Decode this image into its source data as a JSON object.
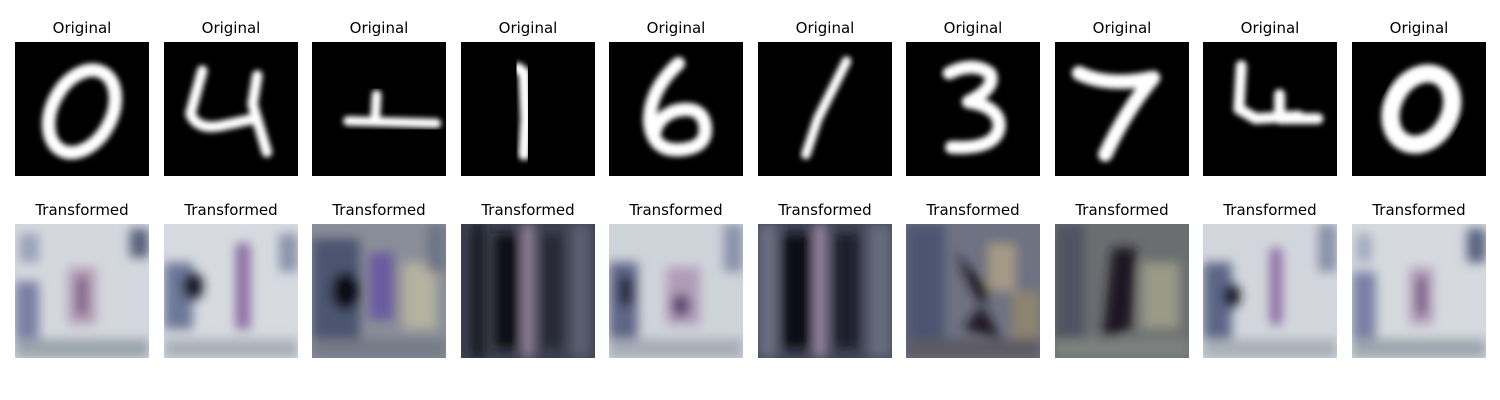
{
  "figure": {
    "original_label": "Original",
    "transformed_label": "Transformed"
  },
  "samples": [
    {
      "digit": "0"
    },
    {
      "digit": "4"
    },
    {
      "digit": "1"
    },
    {
      "digit": "1"
    },
    {
      "digit": "6"
    },
    {
      "digit": "1"
    },
    {
      "digit": "3"
    },
    {
      "digit": "7"
    },
    {
      "digit": "4"
    },
    {
      "digit": "0"
    }
  ],
  "colors": {
    "digit_background": "#000000",
    "digit_stroke": "#ffffff",
    "transformed_base": "#c9ccd3",
    "transformed_dark": "#22242e",
    "transformed_tint": "#7c6a9c"
  }
}
